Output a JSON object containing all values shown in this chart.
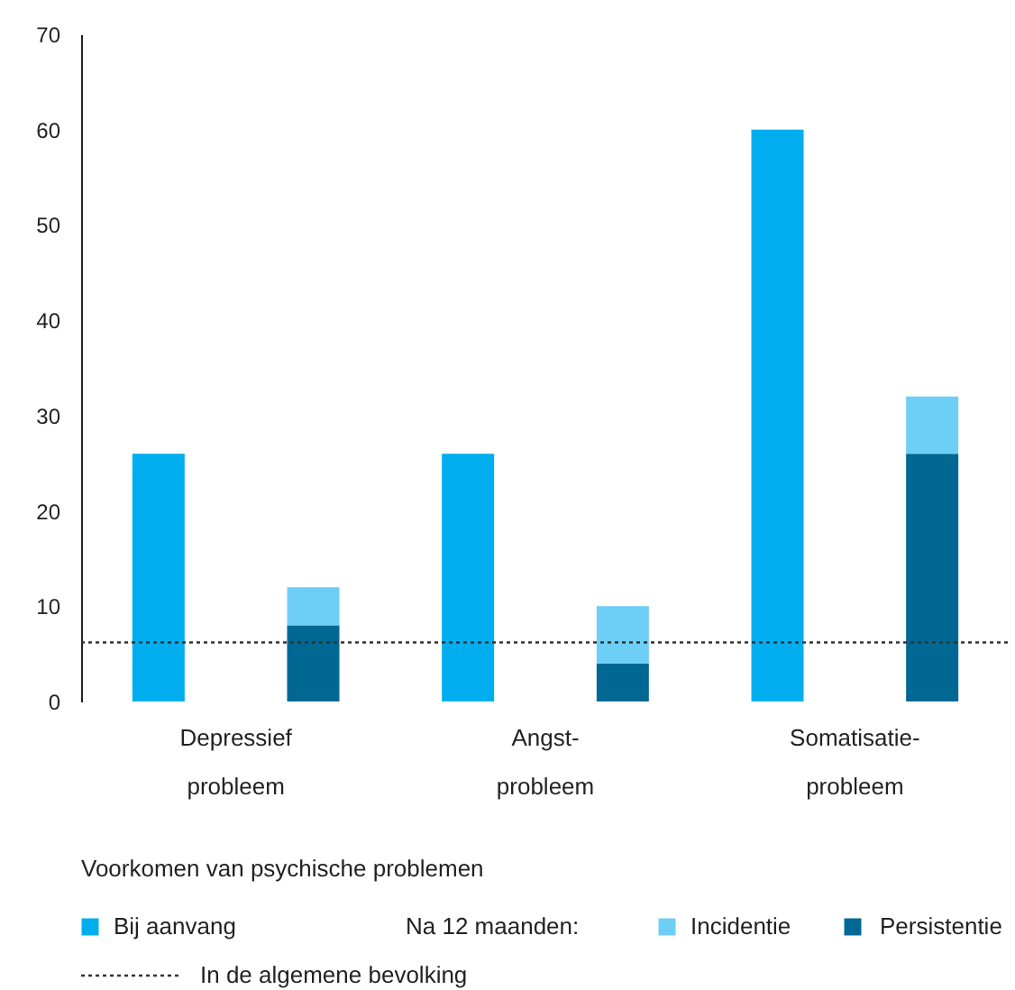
{
  "chart_data": {
    "type": "bar",
    "stacked": true,
    "categories": [
      "Depressief probleem",
      null,
      "Angst-probleem",
      null,
      "Somatisatie-probleem",
      null
    ],
    "series": [
      {
        "name": "Bij aanvang",
        "color": "#00aeef",
        "values": [
          26,
          null,
          26,
          null,
          60,
          null
        ]
      },
      {
        "name": "Persistentie",
        "color": "#006892",
        "values": [
          null,
          8,
          null,
          4,
          null,
          26
        ]
      },
      {
        "name": "Incidentie",
        "color": "#6dcff6",
        "values": [
          null,
          4,
          null,
          6,
          null,
          6
        ]
      }
    ],
    "ylim": [
      0,
      70
    ],
    "yticks": [
      0,
      10,
      20,
      30,
      40,
      50,
      60,
      70
    ],
    "grid": false,
    "legend": "bottom",
    "legend_title": "Voorkomen van psychische problemen",
    "annotations": [
      "Na 12 maanden:"
    ],
    "ref_lines": [
      {
        "axis": "y",
        "value": 6.2,
        "label": "In de algemene bevolking",
        "color": "#333333",
        "line_style": "dotted"
      }
    ]
  }
}
